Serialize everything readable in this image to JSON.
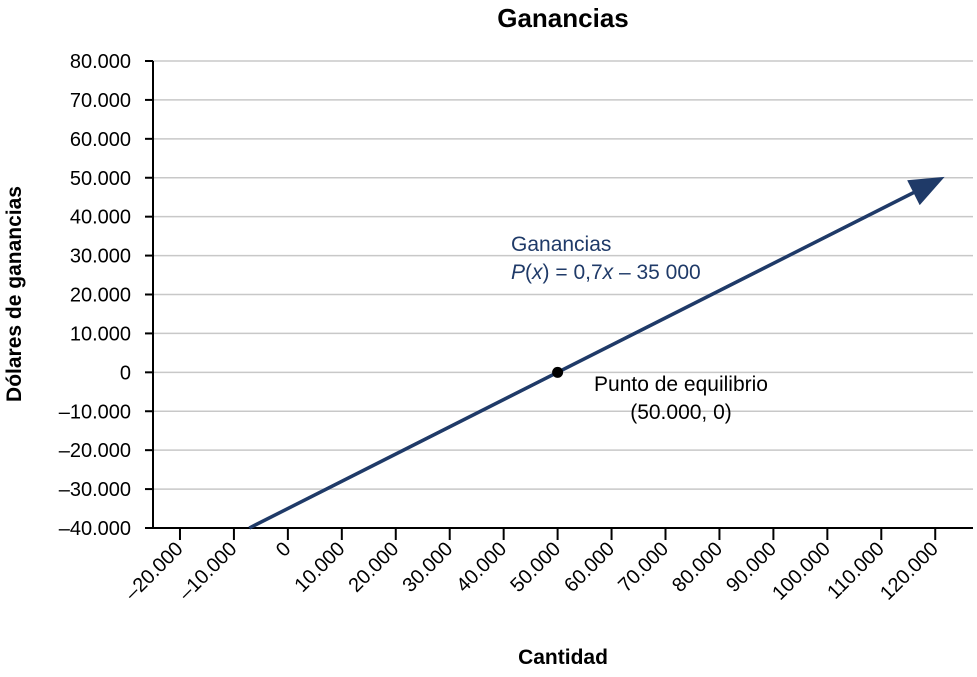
{
  "chart_data": {
    "type": "line",
    "title": "Ganancias",
    "xlabel": "Cantidad",
    "ylabel": "Dólares de ganancias",
    "xlim": [
      -25000,
      127000
    ],
    "ylim": [
      -40000,
      80000
    ],
    "x_ticks": [
      -20000,
      -10000,
      0,
      10000,
      20000,
      30000,
      40000,
      50000,
      60000,
      70000,
      80000,
      90000,
      100000,
      110000,
      120000
    ],
    "x_tick_labels": [
      "–20.000",
      "–10.000",
      "0",
      "10.000",
      "20.000",
      "30.000",
      "40.000",
      "50.000",
      "60.000",
      "70.000",
      "80.000",
      "90.000",
      "100.000",
      "110.000",
      "120.000"
    ],
    "y_ticks": [
      80000,
      70000,
      60000,
      50000,
      40000,
      30000,
      20000,
      10000,
      0,
      -10000,
      -20000,
      -30000,
      -40000
    ],
    "y_tick_labels": [
      "80.000",
      "70.000",
      "60.000",
      "50.000",
      "40.000",
      "30.000",
      "20.000",
      "10.000",
      "0",
      "–10.000",
      "–20.000",
      "–30.000",
      "–40.000"
    ],
    "grid": "horizontal",
    "series": [
      {
        "slope": 0.7,
        "intercept": -35000,
        "x": [
          -7143,
          120000
        ],
        "y": [
          -40000,
          49000
        ],
        "arrow_end": true,
        "color": "#1f3a68"
      }
    ],
    "label": {
      "line1": "Ganancias",
      "eq_italic_P": "P",
      "eq_open": "(",
      "eq_italic_x": "x",
      "eq_mid": ") = 0,7",
      "eq_italic_x2": "x",
      "eq_tail": " – 35 000"
    },
    "point": {
      "x": 50000,
      "y": 0,
      "label_line1": "Punto de equilibrio",
      "label_line2": "(50.000, 0)"
    }
  },
  "colors": {
    "line": "#1f3a68",
    "grid": "#c8c8c8",
    "axis": "#000000",
    "point": "#000000",
    "annotation": "#1f3a68"
  }
}
